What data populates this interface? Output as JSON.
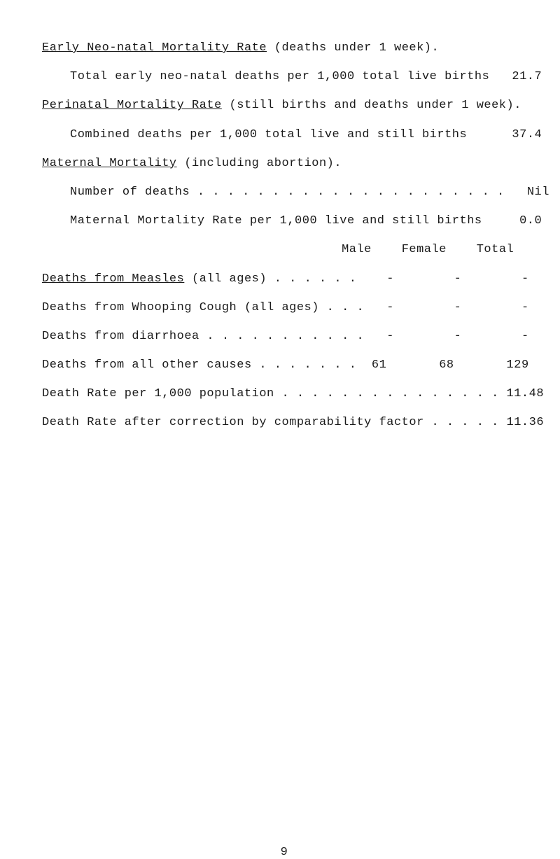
{
  "sections": {
    "early_neonatal": {
      "heading": "Early Neo-natal Mortality Rate",
      "heading_tail": " (deaths under 1 week).",
      "line1_label": "Total early neo-natal deaths per 1,000 total live births",
      "line1_value": "21.7"
    },
    "perinatal": {
      "heading": "Perinatal Mortality Rate",
      "heading_tail": " (still births and deaths under 1 week).",
      "line1_label": "Combined deaths per 1,000 total live and still births",
      "line1_value": "37.4"
    },
    "maternal": {
      "heading": "Maternal Mortality",
      "heading_tail": " (including abortion).",
      "line1_label": "Number of deaths . . . . . . . . . . . . . . . . . . . . .",
      "line1_value": "Nil",
      "line2_label": "Maternal Mortality Rate per 1,000 live and still births",
      "line2_value": "0.0"
    },
    "table": {
      "header_male": "Male",
      "header_female": "Female",
      "header_total": "Total",
      "rows": [
        {
          "label_u": "Deaths from Measles",
          "label_tail": " (all ages) . . . . . .",
          "male": "-",
          "female": "-",
          "total": "-"
        },
        {
          "label_u": "",
          "label_tail": "Deaths from Whooping Cough (all ages) . . .",
          "male": "-",
          "female": "-",
          "total": "-"
        },
        {
          "label_u": "",
          "label_tail": "Deaths from diarrhoea . . . . . . . . . . .",
          "male": "-",
          "female": "-",
          "total": "-"
        },
        {
          "label_u": "",
          "label_tail": "Deaths from all other causes . . . . . . .",
          "male": "61",
          "female": "68",
          "total": "129"
        }
      ],
      "rate1_label": "Death Rate per 1,000 population . . . . . . . . . . . . . . .",
      "rate1_value": "11.48",
      "rate2_label": "Death Rate after correction by comparability factor . . . . .",
      "rate2_value": "11.36"
    }
  },
  "page_number": "9"
}
